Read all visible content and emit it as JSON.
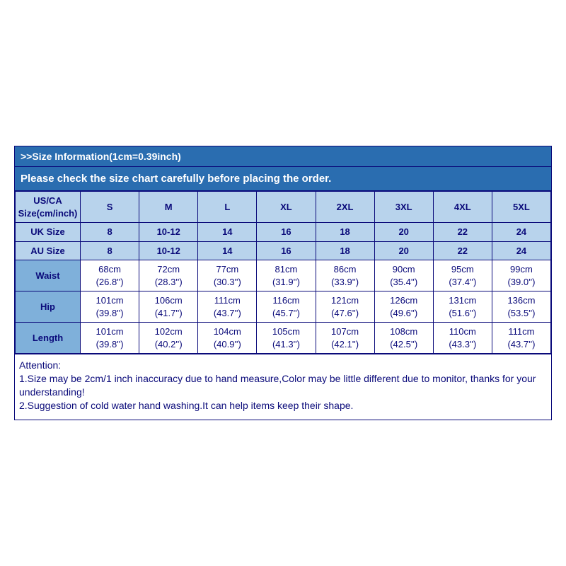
{
  "header": {
    "title": ">>Size Information(1cm=0.39inch)",
    "notice": "Please check the size chart carefully before placing the order."
  },
  "colors": {
    "border": "#0a0a7a",
    "header_bg": "#2a6db0",
    "header_text": "#ffffff",
    "row_light": "#b8d3ec",
    "row_mid": "#7fb0da",
    "data_bg": "#ffffff",
    "text": "#0a0a7a"
  },
  "table": {
    "first_col_label": "US/CA Size(cm/inch)",
    "sizes": [
      "S",
      "M",
      "L",
      "XL",
      "2XL",
      "3XL",
      "4XL",
      "5XL"
    ],
    "uk_label": "UK Size",
    "uk": [
      "8",
      "10-12",
      "14",
      "16",
      "18",
      "20",
      "22",
      "24"
    ],
    "au_label": "AU Size",
    "au": [
      "8",
      "10-12",
      "14",
      "16",
      "18",
      "20",
      "22",
      "24"
    ],
    "measures": [
      {
        "label": "Waist",
        "cm": [
          "68cm",
          "72cm",
          "77cm",
          "81cm",
          "86cm",
          "90cm",
          "95cm",
          "99cm"
        ],
        "inch": [
          "(26.8'')",
          "(28.3'')",
          "(30.3'')",
          "(31.9'')",
          "(33.9'')",
          "(35.4'')",
          "(37.4'')",
          "(39.0'')"
        ]
      },
      {
        "label": "Hip",
        "cm": [
          "101cm",
          "106cm",
          "111cm",
          "116cm",
          "121cm",
          "126cm",
          "131cm",
          "136cm"
        ],
        "inch": [
          "(39.8'')",
          "(41.7'')",
          "(43.7'')",
          "(45.7'')",
          "(47.6'')",
          "(49.6'')",
          "(51.6'')",
          "(53.5'')"
        ]
      },
      {
        "label": "Length",
        "cm": [
          "101cm",
          "102cm",
          "104cm",
          "105cm",
          "107cm",
          "108cm",
          "110cm",
          "111cm"
        ],
        "inch": [
          "(39.8'')",
          "(40.2'')",
          "(40.9'')",
          "(41.3'')",
          "(42.1'')",
          "(42.5'')",
          "(43.3'')",
          "(43.7'')"
        ]
      }
    ]
  },
  "attention": {
    "title": "Attention:",
    "line1": "1.Size may be 2cm/1 inch inaccuracy due to hand measure,Color may be little different due to monitor, thanks for your understanding!",
    "line2": "2.Suggestion of cold water hand washing.It can help items keep their shape."
  }
}
